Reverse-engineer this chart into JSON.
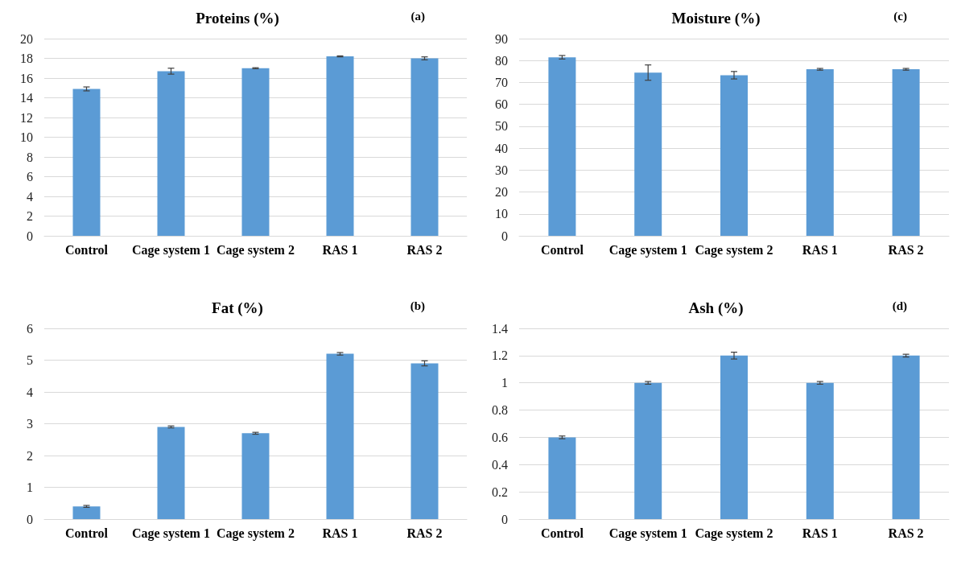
{
  "chart_data": [
    {
      "type": "bar",
      "title": "Proteins (%)",
      "annotations": [
        "(a)"
      ],
      "categories": [
        "Control",
        "Cage system 1",
        "Cage system 2",
        "RAS 1",
        "RAS 2"
      ],
      "values": [
        14.9,
        16.7,
        17.0,
        18.2,
        18.0
      ],
      "errors": [
        0.2,
        0.3,
        0.05,
        0.05,
        0.15
      ],
      "color": "#5b9bd5",
      "ylim": [
        0,
        20
      ],
      "yticks": [
        0,
        2,
        4,
        6,
        8,
        10,
        12,
        14,
        16,
        18,
        20
      ],
      "grid": "y"
    },
    {
      "type": "bar",
      "title": "Moisture (%)",
      "annotations": [
        "(c)"
      ],
      "categories": [
        "Control",
        "Cage system 1",
        "Cage system 2",
        "RAS 1",
        "RAS 2"
      ],
      "values": [
        81.5,
        74.5,
        73.3,
        76.0,
        76.0
      ],
      "errors": [
        0.8,
        3.5,
        1.7,
        0.4,
        0.4
      ],
      "color": "#5b9bd5",
      "ylim": [
        0,
        90
      ],
      "yticks": [
        0,
        10,
        20,
        30,
        40,
        50,
        60,
        70,
        80,
        90
      ],
      "grid": "y"
    },
    {
      "type": "bar",
      "title": "Fat (%)",
      "annotations": [
        "(b)"
      ],
      "categories": [
        "Control",
        "Cage system 1",
        "Cage system 2",
        "RAS 1",
        "RAS 2"
      ],
      "values": [
        0.4,
        2.9,
        2.7,
        5.2,
        4.9
      ],
      "errors": [
        0.03,
        0.03,
        0.03,
        0.04,
        0.08
      ],
      "color": "#5b9bd5",
      "ylim": [
        0,
        6
      ],
      "yticks": [
        0,
        1,
        2,
        3,
        4,
        5,
        6
      ],
      "grid": "y"
    },
    {
      "type": "bar",
      "title": "Ash (%)",
      "annotations": [
        "(d)"
      ],
      "categories": [
        "Control",
        "Cage system 1",
        "Cage system 2",
        "RAS 1",
        "RAS 2"
      ],
      "values": [
        0.6,
        1.0,
        1.2,
        1.0,
        1.2
      ],
      "errors": [
        0.01,
        0.01,
        0.025,
        0.01,
        0.01
      ],
      "color": "#5b9bd5",
      "ylim": [
        0,
        1.4
      ],
      "yticks": [
        0,
        0.2,
        0.4,
        0.6,
        0.8,
        1,
        1.2,
        1.4
      ],
      "grid": "y"
    }
  ]
}
